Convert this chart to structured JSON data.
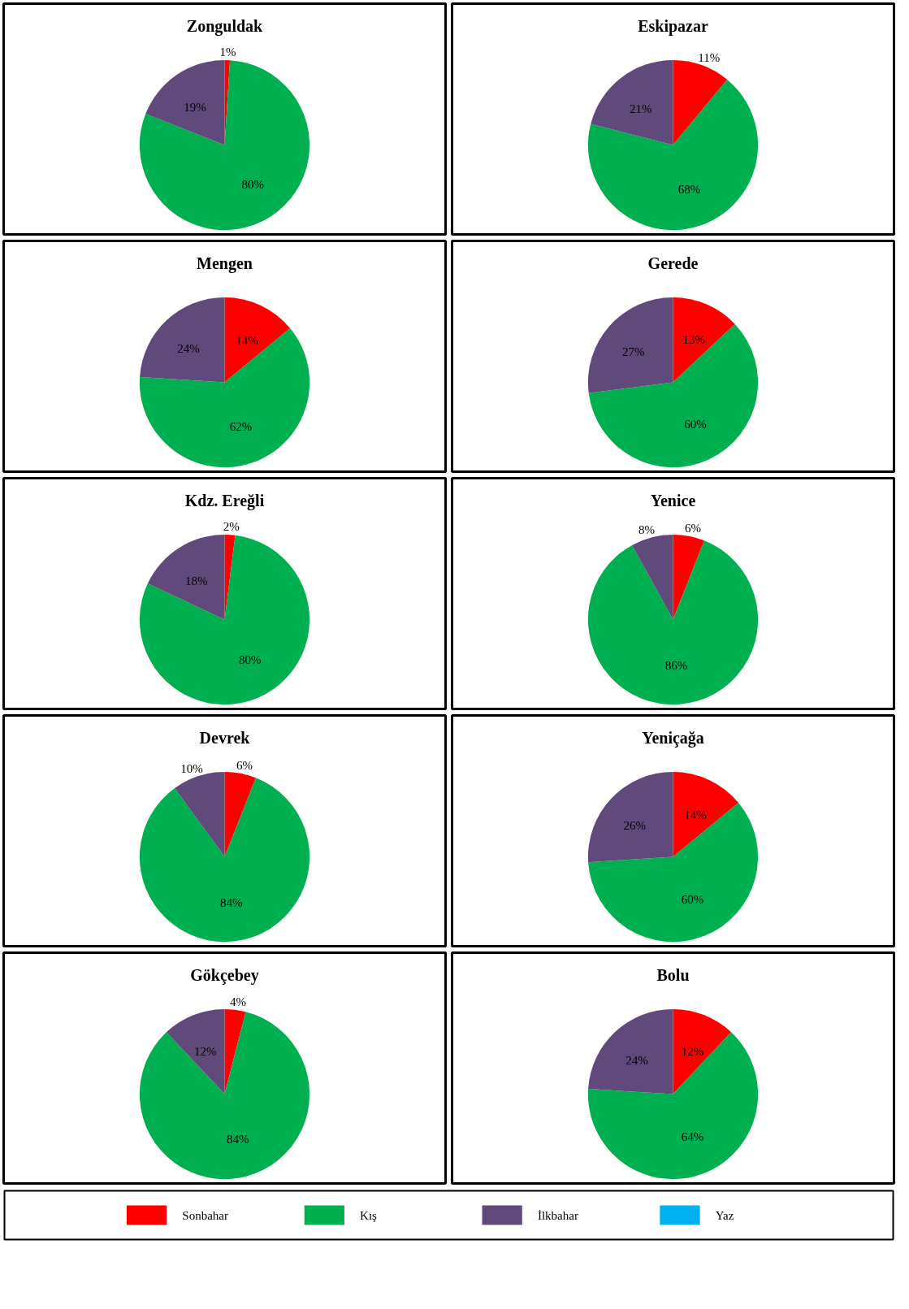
{
  "chart_data": [
    {
      "type": "pie",
      "title": "Zonguldak",
      "categories": [
        "Sonbahar",
        "Kış",
        "İlkbahar",
        "Yaz"
      ],
      "values": [
        1,
        80,
        19,
        0
      ],
      "colors": [
        "#ff0000",
        "#00b050",
        "#604a7b",
        "#00b0f0"
      ],
      "value_labels": [
        "1%",
        "80%",
        "19%",
        null
      ],
      "legend": "bottom"
    },
    {
      "type": "pie",
      "title": "Eskipazar",
      "categories": [
        null,
        null,
        null,
        null
      ],
      "values": [
        11,
        68,
        21,
        0
      ],
      "colors": [
        "#ff0000",
        "#00b050",
        "#604a7b",
        "#00b0f0"
      ],
      "value_labels": [
        "11%",
        "68%",
        "21%",
        null
      ]
    },
    {
      "type": "pie",
      "title": "Mengen",
      "categories": [
        null,
        null,
        null,
        null
      ],
      "values": [
        14,
        62,
        24,
        0
      ],
      "colors": [
        "#ff0000",
        "#00b050",
        "#604a7b",
        "#00b0f0"
      ],
      "value_labels": [
        "14%",
        "62%",
        "24%",
        null
      ]
    },
    {
      "type": "pie",
      "title": "Gerede",
      "categories": [
        null,
        null,
        null,
        null
      ],
      "values": [
        13,
        60,
        27,
        0
      ],
      "colors": [
        "#ff0000",
        "#00b050",
        "#604a7b",
        "#00b0f0"
      ],
      "value_labels": [
        "13%",
        "60%",
        "27%",
        null
      ]
    },
    {
      "type": "pie",
      "title": "Kdz. Ereğli",
      "categories": [
        null,
        null,
        null,
        null
      ],
      "values": [
        2,
        80,
        18,
        0
      ],
      "colors": [
        "#ff0000",
        "#00b050",
        "#604a7b",
        "#00b0f0"
      ],
      "value_labels": [
        "2%",
        "80%",
        "18%",
        null
      ]
    },
    {
      "type": "pie",
      "title": "Yenice",
      "categories": [
        null,
        null,
        null,
        null
      ],
      "values": [
        6,
        86,
        8,
        0
      ],
      "colors": [
        "#ff0000",
        "#00b050",
        "#604a7b",
        "#00b0f0"
      ],
      "value_labels": [
        "6%",
        "86%",
        "8%",
        null
      ]
    },
    {
      "type": "pie",
      "title": "Devrek",
      "categories": [
        null,
        null,
        null,
        null
      ],
      "values": [
        6,
        84,
        10,
        0
      ],
      "colors": [
        "#ff0000",
        "#00b050",
        "#604a7b",
        "#00b0f0"
      ],
      "value_labels": [
        "6%",
        "84%",
        "10%",
        null
      ]
    },
    {
      "type": "pie",
      "title": "Yeniçağa",
      "categories": [
        null,
        null,
        null,
        null
      ],
      "values": [
        14,
        60,
        26,
        0
      ],
      "colors": [
        "#ff0000",
        "#00b050",
        "#604a7b",
        "#00b0f0"
      ],
      "value_labels": [
        "14%",
        "60%",
        "26%",
        null
      ]
    },
    {
      "type": "pie",
      "title": "Gökçebey",
      "categories": [
        null,
        null,
        null,
        null
      ],
      "values": [
        4,
        84,
        12,
        0
      ],
      "colors": [
        "#ff0000",
        "#00b050",
        "#604a7b",
        "#00b0f0"
      ],
      "value_labels": [
        "4%",
        "84%",
        "12%",
        null
      ]
    },
    {
      "type": "pie",
      "title": "Bolu",
      "categories": [
        null,
        null,
        null,
        null
      ],
      "values": [
        12,
        64,
        24,
        0
      ],
      "colors": [
        "#ff0000",
        "#00b050",
        "#604a7b",
        "#00b0f0"
      ],
      "value_labels": [
        "12%",
        "64%",
        "24%",
        null
      ]
    }
  ]
}
